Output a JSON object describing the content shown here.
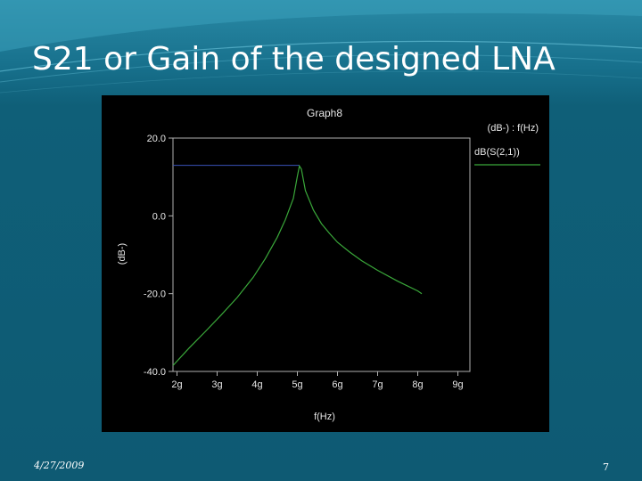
{
  "slide": {
    "title": "S21 or Gain of the designed LNA",
    "date": "4/27/2009",
    "page_number": "7"
  },
  "colors": {
    "background": "#0e5a73",
    "plot_background": "#000000",
    "axis": "#b0b0b0",
    "trace": "#3aa83a",
    "marker_line": "#3a52b8"
  },
  "chart_data": {
    "type": "line",
    "title": "Graph8",
    "legend_header": "(dB-) : f(Hz)",
    "xlabel": "f(Hz)",
    "ylabel": "(dB-)",
    "xlim": [
      1.9,
      9.3
    ],
    "ylim": [
      -40,
      20
    ],
    "x_ticks": [
      2,
      3,
      4,
      5,
      6,
      7,
      8,
      9
    ],
    "x_tick_labels": [
      "2g",
      "3g",
      "4g",
      "5g",
      "6g",
      "7g",
      "8g",
      "9g"
    ],
    "y_ticks": [
      20,
      0,
      -20,
      -40
    ],
    "y_tick_labels": [
      "20.0",
      "0.0",
      "-20.0",
      "-40.0"
    ],
    "legend_position": "top-right",
    "series": [
      {
        "name": "dB(S(2,1))",
        "color": "#3aa83a",
        "x": [
          1.9,
          2.3,
          2.7,
          3.1,
          3.5,
          3.9,
          4.2,
          4.5,
          4.7,
          4.9,
          5.0,
          5.05,
          5.1,
          5.2,
          5.4,
          5.6,
          5.8,
          6.0,
          6.3,
          6.6,
          7.0,
          7.5,
          8.0,
          8.1
        ],
        "y": [
          -38.5,
          -34.0,
          -29.8,
          -25.5,
          -21.0,
          -15.8,
          -11.0,
          -5.5,
          -1.0,
          4.5,
          10.2,
          12.8,
          12.0,
          6.5,
          1.5,
          -2.0,
          -4.5,
          -6.8,
          -9.3,
          -11.5,
          -14.0,
          -16.8,
          -19.3,
          -20.0
        ]
      }
    ],
    "marker_line": {
      "y": 13.0,
      "x_start": 1.9,
      "x_end": 5.05
    }
  }
}
